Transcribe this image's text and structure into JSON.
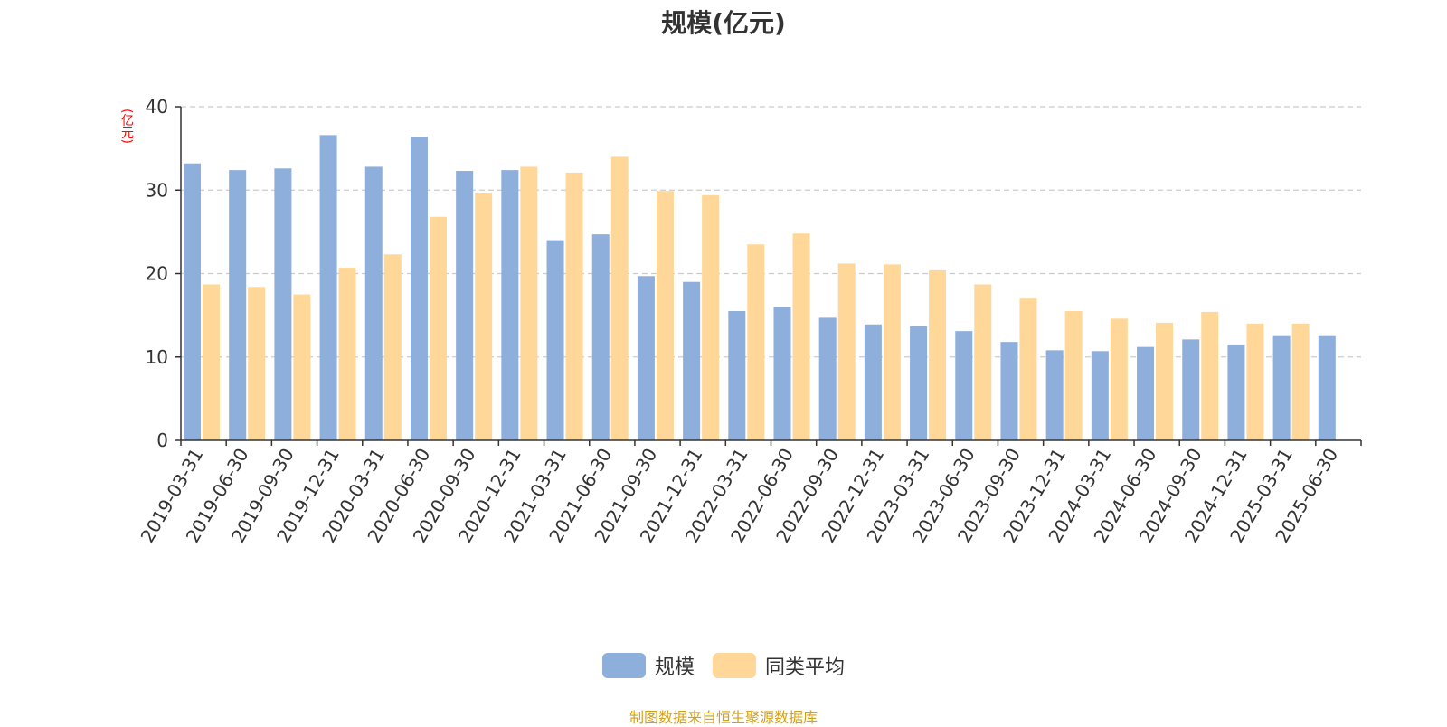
{
  "title": "规模(亿元)",
  "y_unit": "(亿元)",
  "source": "制图数据来自恒生聚源数据库",
  "colors": {
    "series1": "#8eaedc",
    "series2": "#ffd899",
    "axis": "#333333",
    "grid": "#cccccc"
  },
  "chart_data": {
    "type": "bar",
    "title": "规模(亿元)",
    "ylabel": "(亿元)",
    "ylim": [
      0,
      40
    ],
    "yticks": [
      0,
      10,
      20,
      30,
      40
    ],
    "grid": true,
    "legend_position": "bottom",
    "categories": [
      "2019-03-31",
      "2019-06-30",
      "2019-09-30",
      "2019-12-31",
      "2020-03-31",
      "2020-06-30",
      "2020-09-30",
      "2020-12-31",
      "2021-03-31",
      "2021-06-30",
      "2021-09-30",
      "2021-12-31",
      "2022-03-31",
      "2022-06-30",
      "2022-09-30",
      "2022-12-31",
      "2023-03-31",
      "2023-06-30",
      "2023-09-30",
      "2023-12-31",
      "2024-03-31",
      "2024-06-30",
      "2024-09-30",
      "2024-12-31",
      "2025-03-31",
      "2025-06-30"
    ],
    "series": [
      {
        "name": "规模",
        "values": [
          33.2,
          32.4,
          32.6,
          36.6,
          32.8,
          36.4,
          32.3,
          32.4,
          24.0,
          24.7,
          19.7,
          19.0,
          15.5,
          16.0,
          14.7,
          13.9,
          13.7,
          13.1,
          11.8,
          10.8,
          10.7,
          11.2,
          12.1,
          11.5,
          12.5,
          12.5
        ]
      },
      {
        "name": "同类平均",
        "values": [
          18.7,
          18.4,
          17.5,
          20.7,
          22.3,
          26.8,
          29.7,
          32.8,
          32.1,
          34.0,
          29.9,
          29.4,
          23.5,
          24.8,
          21.2,
          21.1,
          20.4,
          18.7,
          17.0,
          15.5,
          14.6,
          14.1,
          15.4,
          14.0,
          14.0,
          null
        ]
      }
    ]
  }
}
